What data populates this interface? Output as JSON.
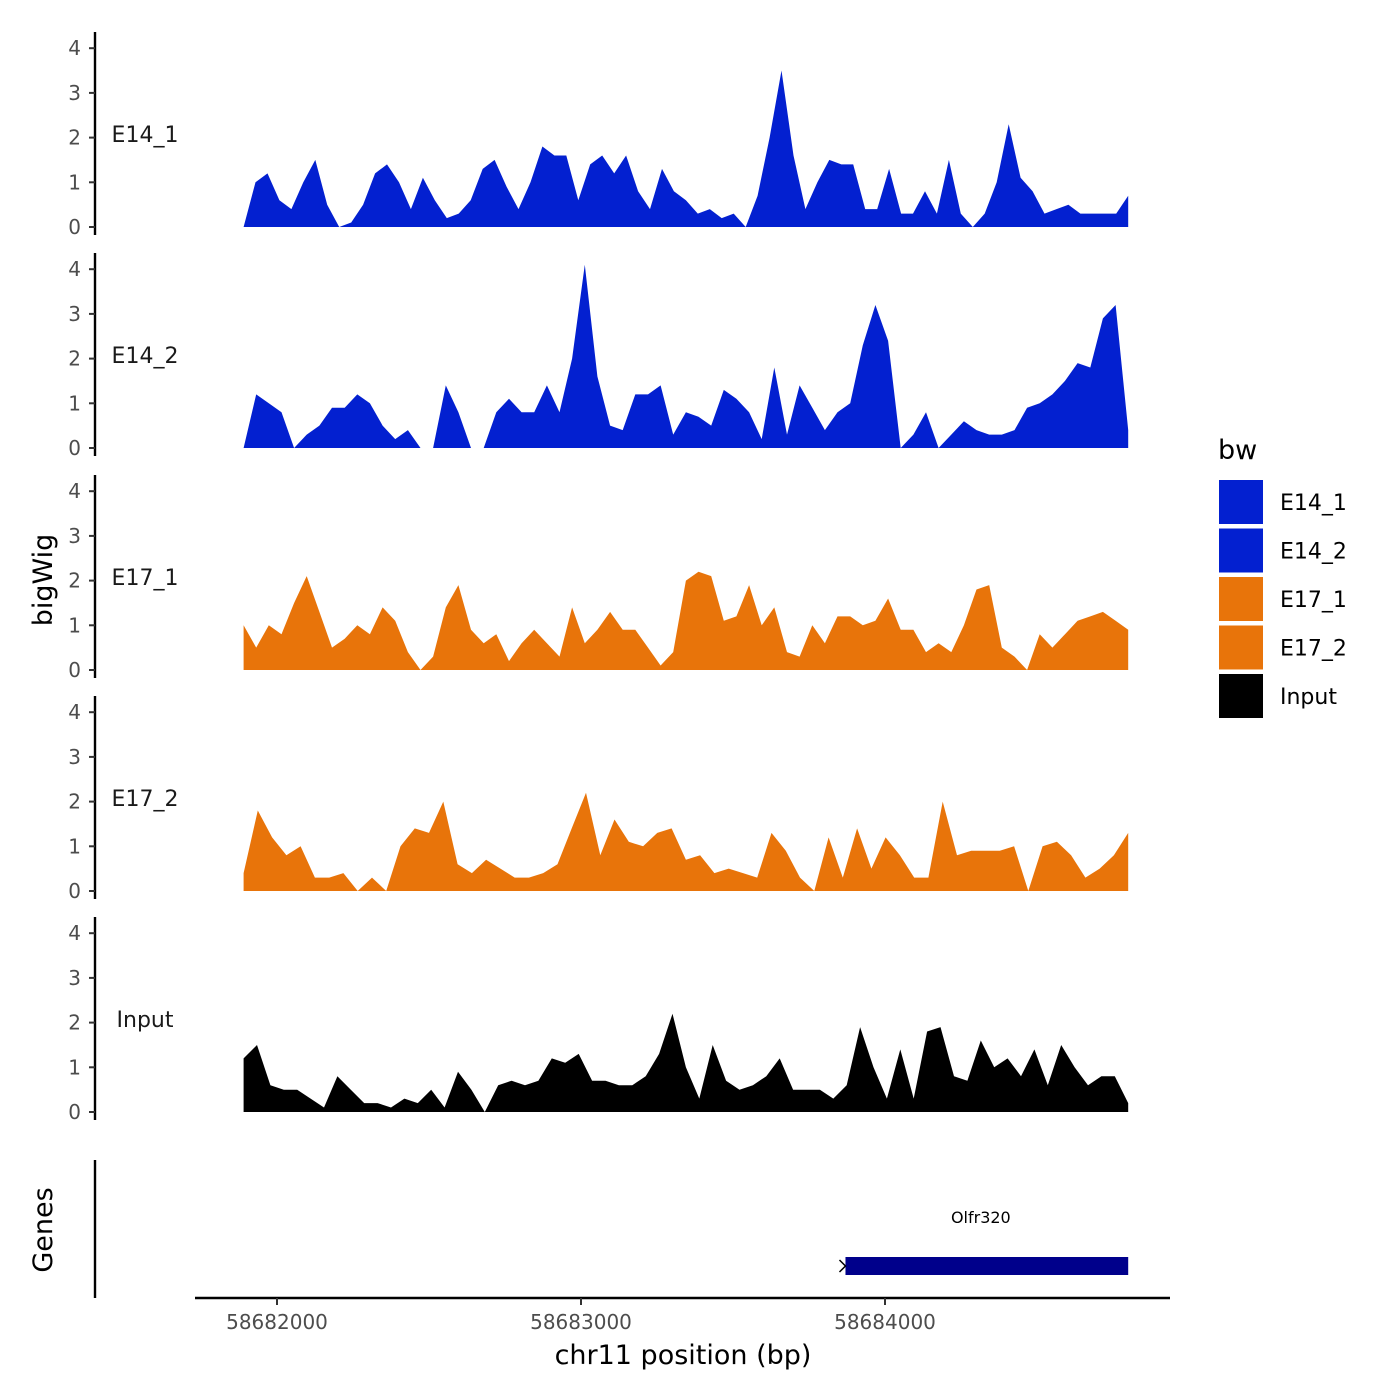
{
  "chart_data": {
    "type": "area",
    "ylabel": "bigWig",
    "xlabel": "chr11 position (bp)",
    "genes_label": "Genes",
    "ylim": [
      0,
      4.3
    ],
    "xlim": [
      58681700,
      58684900
    ],
    "y_ticks": [
      "0",
      "1",
      "2",
      "3",
      "4"
    ],
    "x_ticks": [
      {
        "value": 58682000,
        "label": "58682000"
      },
      {
        "value": 58683000,
        "label": "58683000"
      },
      {
        "value": 58684000,
        "label": "58684000"
      }
    ],
    "x_range": [
      58681890,
      58684800
    ],
    "legend": {
      "title": "bw",
      "entries": [
        {
          "name": "E14_1",
          "color": "#0320D0"
        },
        {
          "name": "E14_2",
          "color": "#0320D0"
        },
        {
          "name": "E17_1",
          "color": "#E8740A"
        },
        {
          "name": "E17_2",
          "color": "#E8740A"
        },
        {
          "name": "Input",
          "color": "#000000"
        }
      ]
    },
    "series": [
      {
        "name": "E14_1",
        "color": "#0320D0",
        "values": [
          0,
          1.0,
          1.2,
          0.6,
          0.4,
          1.0,
          1.5,
          0.5,
          0,
          0.1,
          0.5,
          1.2,
          1.4,
          1.0,
          0.4,
          1.1,
          0.6,
          0.2,
          0.3,
          0.6,
          1.3,
          1.5,
          0.9,
          0.4,
          1.0,
          1.8,
          1.6,
          1.6,
          0.6,
          1.4,
          1.6,
          1.2,
          1.6,
          0.8,
          0.4,
          1.3,
          0.8,
          0.6,
          0.3,
          0.4,
          0.2,
          0.3,
          0,
          0.7,
          2.0,
          3.5,
          1.6,
          0.4,
          1.0,
          1.5,
          1.4,
          1.4,
          0.4,
          0.4,
          1.3,
          0.3,
          0.3,
          0.8,
          0.3,
          1.5,
          0.3,
          0,
          0.3,
          1.0,
          2.3,
          1.1,
          0.8,
          0.3,
          0.4,
          0.5,
          0.3,
          0.3,
          0.3,
          0.3,
          0.7
        ]
      },
      {
        "name": "E14_2",
        "color": "#0320D0",
        "values": [
          0,
          1.2,
          1.0,
          0.8,
          0,
          0.3,
          0.5,
          0.9,
          0.9,
          1.2,
          1.0,
          0.5,
          0.2,
          0.4,
          0,
          0,
          1.4,
          0.8,
          0,
          0,
          0.8,
          1.1,
          0.8,
          0.8,
          1.4,
          0.8,
          2.0,
          4.1,
          1.6,
          0.5,
          0.4,
          1.2,
          1.2,
          1.4,
          0.3,
          0.8,
          0.7,
          0.5,
          1.3,
          1.1,
          0.8,
          0.2,
          1.8,
          0.3,
          1.4,
          0.9,
          0.4,
          0.8,
          1.0,
          2.3,
          3.2,
          2.4,
          0,
          0.3,
          0.8,
          0,
          0.3,
          0.6,
          0.4,
          0.3,
          0.3,
          0.4,
          0.9,
          1.0,
          1.2,
          1.5,
          1.9,
          1.8,
          2.9,
          3.2,
          0.4
        ]
      },
      {
        "name": "E17_1",
        "color": "#E8740A",
        "values": [
          1.0,
          0.5,
          1.0,
          0.8,
          1.5,
          2.1,
          1.3,
          0.5,
          0.7,
          1.0,
          0.8,
          1.4,
          1.1,
          0.4,
          0,
          0.3,
          1.4,
          1.9,
          0.9,
          0.6,
          0.8,
          0.2,
          0.6,
          0.9,
          0.6,
          0.3,
          1.4,
          0.6,
          0.9,
          1.3,
          0.9,
          0.9,
          0.5,
          0.1,
          0.4,
          2.0,
          2.2,
          2.1,
          1.1,
          1.2,
          1.9,
          1.0,
          1.4,
          0.4,
          0.3,
          1.0,
          0.6,
          1.2,
          1.2,
          1.0,
          1.1,
          1.6,
          0.9,
          0.9,
          0.4,
          0.6,
          0.4,
          1.0,
          1.8,
          1.9,
          0.5,
          0.3,
          0,
          0.8,
          0.5,
          0.8,
          1.1,
          1.2,
          1.3,
          1.1,
          0.9
        ]
      },
      {
        "name": "E17_2",
        "color": "#E8740A",
        "values": [
          0.4,
          1.8,
          1.2,
          0.8,
          1.0,
          0.3,
          0.3,
          0.4,
          0,
          0.3,
          0,
          1.0,
          1.4,
          1.3,
          2.0,
          0.6,
          0.4,
          0.7,
          0.5,
          0.3,
          0.3,
          0.4,
          0.6,
          1.4,
          2.2,
          0.8,
          1.6,
          1.1,
          1.0,
          1.3,
          1.4,
          0.7,
          0.8,
          0.4,
          0.5,
          0.4,
          0.3,
          1.3,
          0.9,
          0.3,
          0,
          1.2,
          0.3,
          1.4,
          0.5,
          1.2,
          0.8,
          0.3,
          0.3,
          2.0,
          0.8,
          0.9,
          0.9,
          0.9,
          1.0,
          0,
          1.0,
          1.1,
          0.8,
          0.3,
          0.5,
          0.8,
          1.3
        ]
      },
      {
        "name": "Input",
        "color": "#000000",
        "values": [
          1.2,
          1.5,
          0.6,
          0.5,
          0.5,
          0.3,
          0.1,
          0.8,
          0.5,
          0.2,
          0.2,
          0.1,
          0.3,
          0.2,
          0.5,
          0.1,
          0.9,
          0.5,
          0,
          0.6,
          0.7,
          0.6,
          0.7,
          1.2,
          1.1,
          1.3,
          0.7,
          0.7,
          0.6,
          0.6,
          0.8,
          1.3,
          2.2,
          1.0,
          0.3,
          1.5,
          0.7,
          0.5,
          0.6,
          0.8,
          1.2,
          0.5,
          0.5,
          0.5,
          0.3,
          0.6,
          1.9,
          1.0,
          0.3,
          1.4,
          0.3,
          1.8,
          1.9,
          0.8,
          0.7,
          1.6,
          1.0,
          1.2,
          0.8,
          1.4,
          0.6,
          1.5,
          1.0,
          0.6,
          0.8,
          0.8,
          0.2
        ]
      }
    ],
    "genes": [
      {
        "name": "Olfr320",
        "start": 58683870,
        "end": 58684800,
        "color": "#00008B"
      }
    ]
  }
}
